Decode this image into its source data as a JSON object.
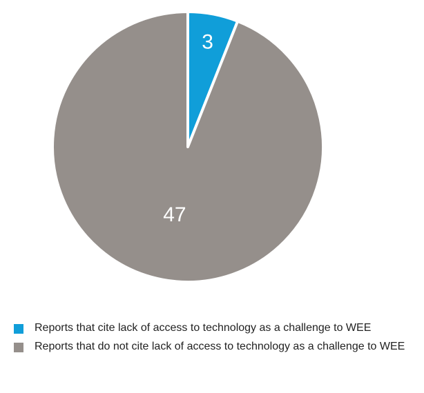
{
  "chart_data": {
    "type": "pie",
    "slices": [
      {
        "label": "Reports that cite lack of access to technology as a challenge to WEE",
        "value": 3,
        "color": "#109ed9"
      },
      {
        "label": "Reports that do not cite lack of access to technology as a challenge to WEE",
        "value": 47,
        "color": "#958f8b"
      }
    ],
    "legend_position": "bottom",
    "data_labels": [
      "3",
      "47"
    ]
  }
}
